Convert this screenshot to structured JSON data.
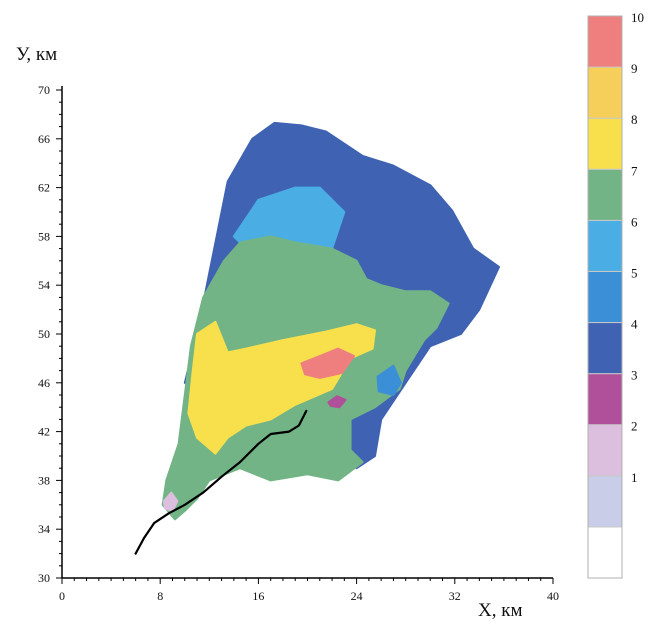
{
  "chart_data": {
    "type": "heatmap",
    "ylabel": "У, км",
    "xlabel": "X, км",
    "xlim": [
      0,
      40
    ],
    "ylim": [
      30,
      70
    ],
    "x_ticks": [
      0,
      8,
      16,
      24,
      32,
      40
    ],
    "y_ticks": [
      30,
      34,
      38,
      42,
      46,
      50,
      54,
      58,
      62,
      66,
      70
    ],
    "legend": [
      {
        "label": "",
        "color": "#ffffff"
      },
      {
        "label": "1",
        "color": "#c9cde8"
      },
      {
        "label": "2",
        "color": "#dcbfdf"
      },
      {
        "label": "3",
        "color": "#b04f9a"
      },
      {
        "label": "4",
        "color": "#3f63b2"
      },
      {
        "label": "5",
        "color": "#3a8fd6"
      },
      {
        "label": "6",
        "color": "#4aaee4"
      },
      {
        "label": "7",
        "color": "#73b486"
      },
      {
        "label": "8",
        "color": "#f8e04d"
      },
      {
        "label": "9",
        "color": "#f6cf5a"
      },
      {
        "label": "10",
        "color": "#ef7f7f"
      }
    ],
    "regions": [
      {
        "class": "4",
        "polygon": [
          [
            13.5,
            62.5
          ],
          [
            15.5,
            66
          ],
          [
            17.3,
            67.3
          ],
          [
            19.5,
            67.1
          ],
          [
            21.5,
            66.6
          ],
          [
            24.5,
            64.6
          ],
          [
            27,
            63.8
          ],
          [
            30,
            62.2
          ],
          [
            31.8,
            60.1
          ],
          [
            33.5,
            57
          ],
          [
            35.6,
            55.5
          ],
          [
            34,
            52
          ],
          [
            32.5,
            50
          ],
          [
            30,
            49
          ],
          [
            28,
            46
          ],
          [
            26,
            43
          ],
          [
            25.5,
            40
          ],
          [
            24,
            39
          ],
          [
            22.5,
            42
          ],
          [
            22,
            44
          ],
          [
            20,
            47
          ],
          [
            16,
            48
          ],
          [
            12,
            47
          ],
          [
            10,
            46
          ],
          [
            11,
            50
          ],
          [
            12,
            55
          ]
        ]
      },
      {
        "class": "6",
        "polygon": [
          [
            14,
            58
          ],
          [
            16,
            61
          ],
          [
            19,
            62
          ],
          [
            21,
            62
          ],
          [
            23,
            60
          ],
          [
            22,
            57
          ],
          [
            19,
            57
          ],
          [
            16,
            56
          ]
        ]
      },
      {
        "class": "7",
        "polygon": [
          [
            13.2,
            56
          ],
          [
            14.5,
            57.5
          ],
          [
            17,
            58
          ],
          [
            19,
            57.5
          ],
          [
            22,
            57
          ],
          [
            24,
            56
          ],
          [
            24.8,
            54.5
          ],
          [
            26,
            54
          ],
          [
            28,
            53.5
          ],
          [
            30,
            53.5
          ],
          [
            31.5,
            52.5
          ],
          [
            30.5,
            50.5
          ],
          [
            29.5,
            49.5
          ],
          [
            28,
            47
          ],
          [
            27.5,
            45.5
          ],
          [
            25.5,
            44
          ],
          [
            23.5,
            43
          ],
          [
            23.5,
            40.5
          ],
          [
            24.5,
            39.5
          ],
          [
            22.5,
            38
          ],
          [
            20,
            38.5
          ],
          [
            17,
            38
          ],
          [
            14.5,
            39
          ],
          [
            12,
            38
          ],
          [
            11,
            36.5
          ],
          [
            10,
            35.5
          ],
          [
            9.2,
            34.8
          ],
          [
            8.2,
            36
          ],
          [
            8.5,
            38
          ],
          [
            9.5,
            41
          ],
          [
            10,
            45
          ],
          [
            10.5,
            49
          ],
          [
            11.5,
            53
          ]
        ]
      },
      {
        "class": "5",
        "polygon": [
          [
            25.7,
            46.5
          ],
          [
            27,
            47.4
          ],
          [
            27.6,
            46
          ],
          [
            27,
            45
          ],
          [
            25.8,
            45.3
          ]
        ]
      },
      {
        "class": "8",
        "polygon": [
          [
            11,
            50
          ],
          [
            12.5,
            51
          ],
          [
            13.5,
            48.5
          ],
          [
            15,
            48.8
          ],
          [
            18,
            49.5
          ],
          [
            21.5,
            50.2
          ],
          [
            24,
            50.8
          ],
          [
            25.5,
            50.3
          ],
          [
            25.3,
            48.8
          ],
          [
            23.5,
            48
          ],
          [
            22,
            45.5
          ],
          [
            19,
            44.2
          ],
          [
            17,
            43
          ],
          [
            15,
            42.5
          ],
          [
            13.5,
            41.5
          ],
          [
            12.5,
            40.2
          ],
          [
            11,
            41.5
          ],
          [
            10.3,
            43.5
          ],
          [
            10.6,
            46.5
          ]
        ]
      },
      {
        "class": "10",
        "polygon": [
          [
            19.5,
            47.6
          ],
          [
            21,
            48.2
          ],
          [
            22.5,
            48.8
          ],
          [
            23.8,
            48.2
          ],
          [
            22.8,
            46.8
          ],
          [
            21,
            46.4
          ],
          [
            19.8,
            46.7
          ]
        ]
      },
      {
        "class": "3",
        "polygon": [
          [
            21.7,
            44.4
          ],
          [
            22.4,
            44.9
          ],
          [
            23.1,
            44.6
          ],
          [
            22.6,
            44
          ],
          [
            21.9,
            44.1
          ]
        ]
      },
      {
        "class": "2",
        "polygon": [
          [
            8.3,
            36.3
          ],
          [
            8.9,
            37
          ],
          [
            9.4,
            36.3
          ],
          [
            9,
            35.5
          ],
          [
            8.4,
            35.7
          ]
        ]
      }
    ],
    "river": [
      [
        6,
        32
      ],
      [
        6.7,
        33.3
      ],
      [
        7.5,
        34.5
      ],
      [
        8.7,
        35.3
      ],
      [
        10,
        36
      ],
      [
        11.5,
        37
      ],
      [
        13,
        38.3
      ],
      [
        14.5,
        39.5
      ],
      [
        16,
        41
      ],
      [
        17,
        41.8
      ],
      [
        18.5,
        42
      ],
      [
        19.3,
        42.5
      ],
      [
        19.9,
        43.7
      ]
    ]
  }
}
